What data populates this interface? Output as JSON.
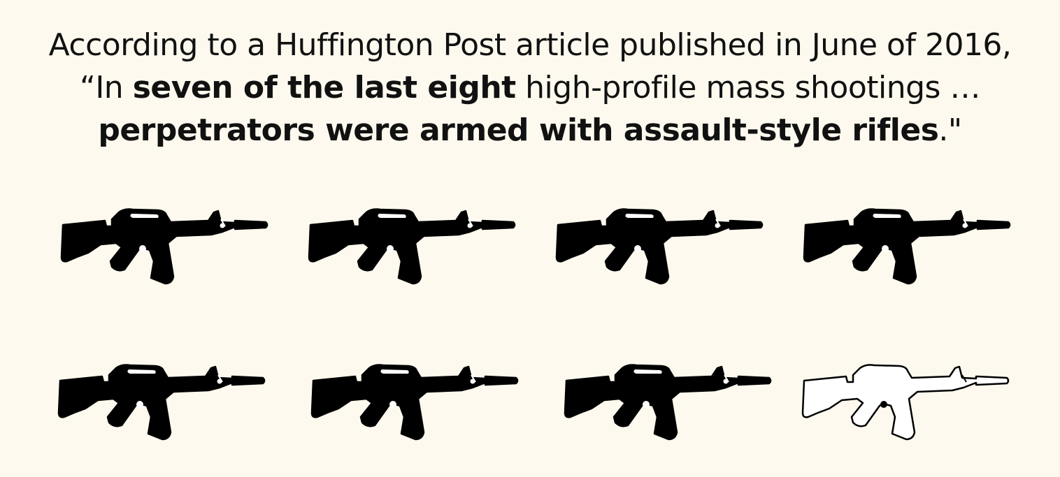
{
  "quote": {
    "part1": "According to a Huffington Post article published in June of 2016, “In ",
    "bold1": "seven of the last eight",
    "part2": " high-profile mass shootings … ",
    "bold2": "perpetrators were armed with assault-style rifles",
    "part3": ".\""
  },
  "pictograph": {
    "icon": "assault-rifle-icon",
    "total": 8,
    "highlighted": 7,
    "colors": {
      "highlighted": "#000000",
      "other": "#ffffff",
      "background": "#fdf9ee"
    }
  }
}
